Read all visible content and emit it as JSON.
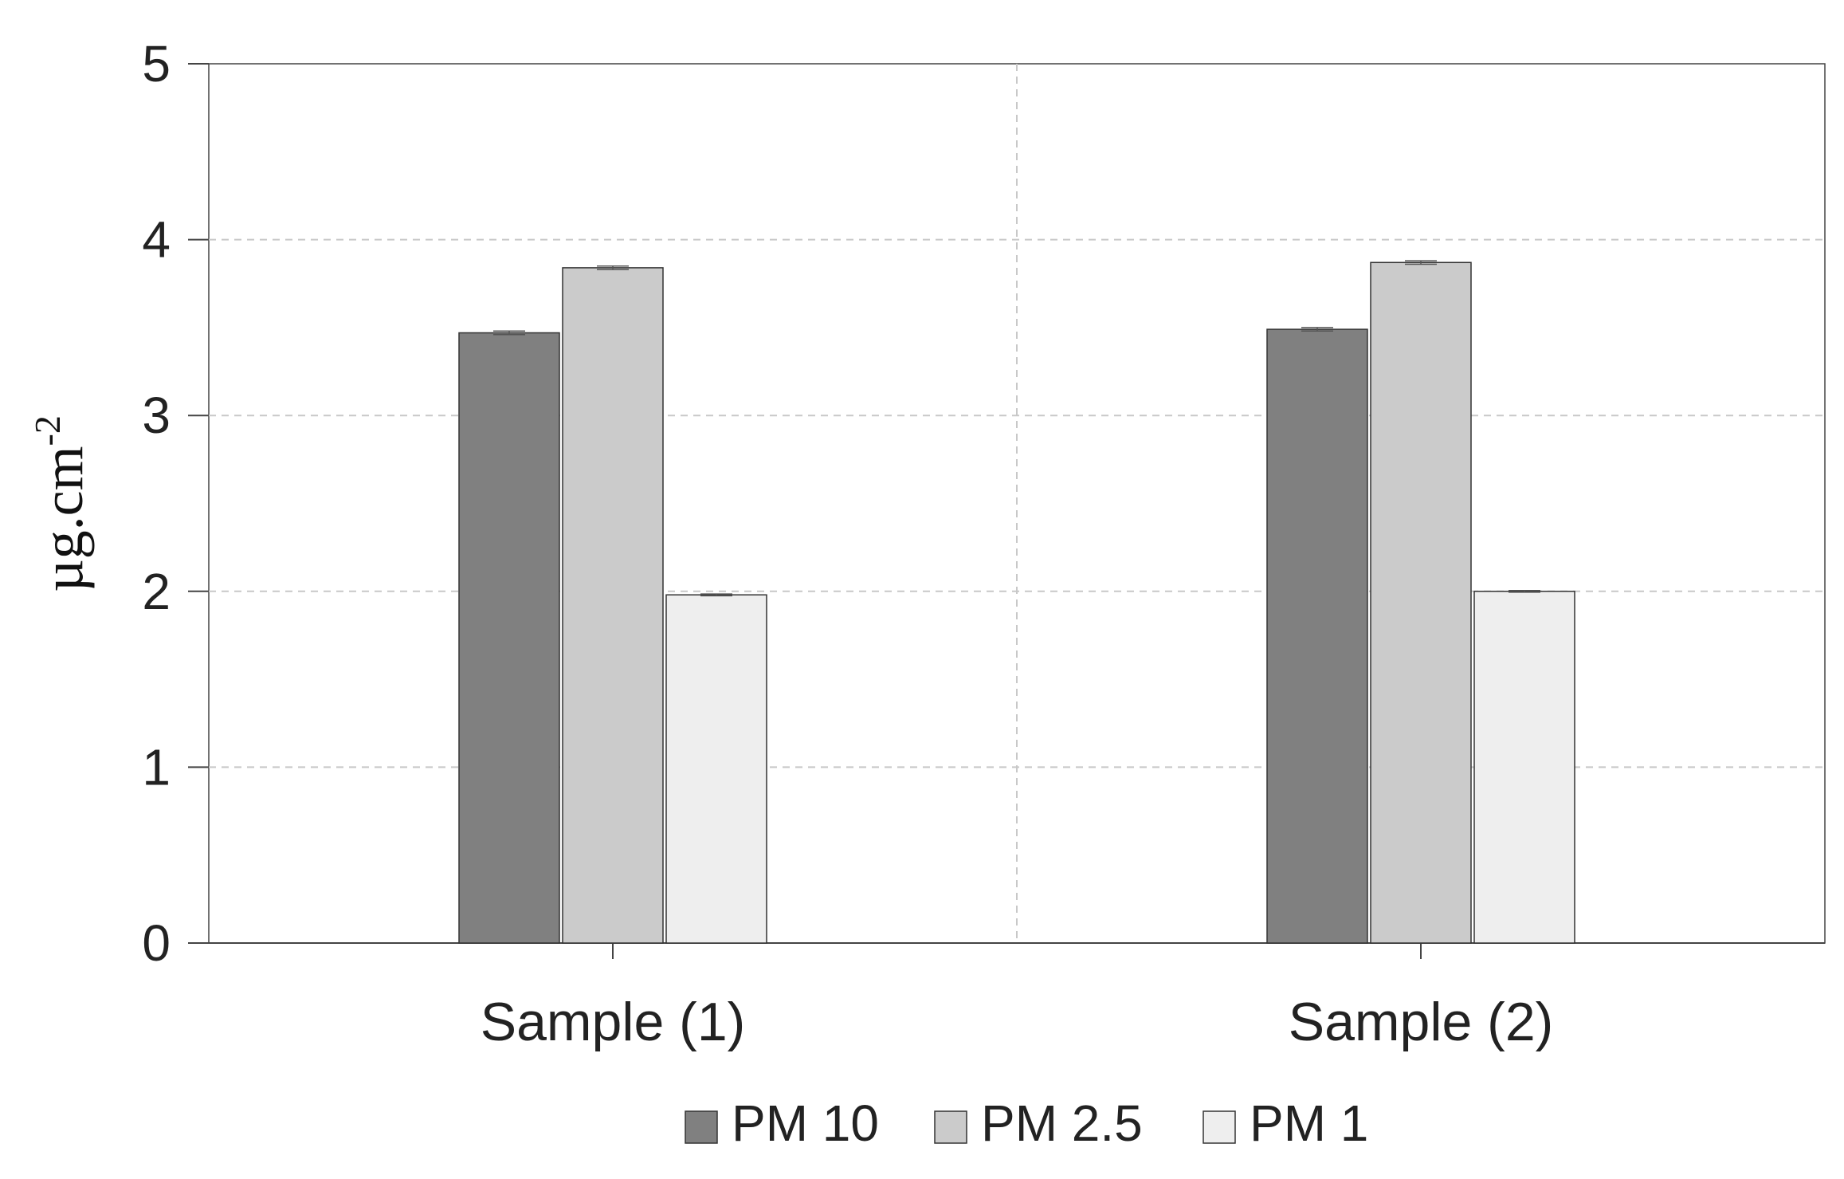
{
  "chart_data": {
    "type": "bar",
    "title": "",
    "xlabel": "",
    "ylabel": "µg.cm",
    "ylabel_superscript": "-2",
    "categories": [
      "Sample (1)",
      "Sample (2)"
    ],
    "series": [
      {
        "name": "PM 10",
        "color": "#808080",
        "values": [
          3.47,
          3.49
        ],
        "errors": [
          0.01,
          0.01
        ]
      },
      {
        "name": "PM 2.5",
        "color": "#cbcbcb",
        "values": [
          3.84,
          3.87
        ],
        "errors": [
          0.01,
          0.01
        ]
      },
      {
        "name": "PM 1",
        "color": "#eeeeee",
        "values": [
          1.98,
          2.0
        ],
        "errors": [
          0.005,
          0.005
        ]
      }
    ],
    "ylim": [
      0,
      5
    ],
    "yticks": [
      "0",
      "1",
      "2",
      "3",
      "4",
      "5"
    ],
    "grid": true,
    "grid_style": "dashed",
    "legend_position": "bottom-center"
  }
}
